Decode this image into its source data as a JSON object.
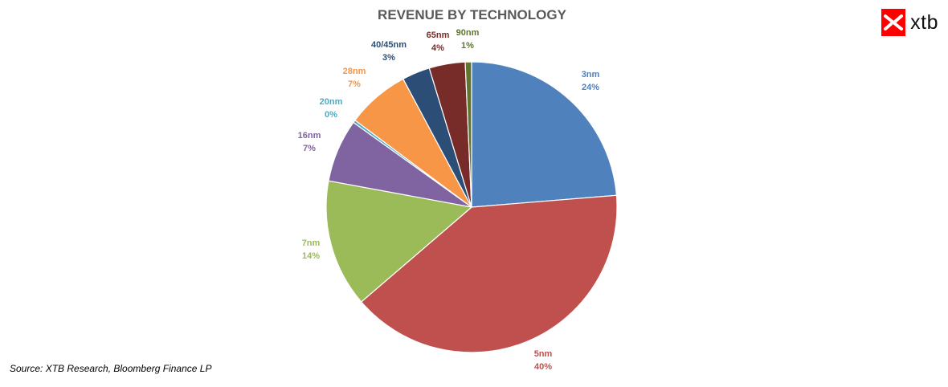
{
  "chart_data": {
    "type": "pie",
    "title": "REVENUE BY TECHNOLOGY",
    "slices": [
      {
        "label": "3nm",
        "percent_label": "24%",
        "value": 23.7,
        "color": "#4f81bd"
      },
      {
        "label": "5nm",
        "percent_label": "40%",
        "value": 40.0,
        "color": "#c0504d"
      },
      {
        "label": "7nm",
        "percent_label": "14%",
        "value": 14.2,
        "color": "#9bbb59"
      },
      {
        "label": "16nm",
        "percent_label": "7%",
        "value": 7.0,
        "color": "#8064a2"
      },
      {
        "label": "20nm",
        "percent_label": "0%",
        "value": 0.3,
        "color": "#4bacc6"
      },
      {
        "label": "28nm",
        "percent_label": "7%",
        "value": 7.0,
        "color": "#f79646"
      },
      {
        "label": "40/45nm",
        "percent_label": "3%",
        "value": 3.1,
        "color": "#2c4d75"
      },
      {
        "label": "65nm",
        "percent_label": "4%",
        "value": 4.0,
        "color": "#772c2a"
      },
      {
        "label": "90nm",
        "percent_label": "1%",
        "value": 0.7,
        "color": "#5f7530"
      }
    ],
    "start_angle_deg": 0,
    "direction": "clockwise"
  },
  "source": "Source: XTB Research, Bloomberg Finance LP",
  "logo": {
    "text": "xtb",
    "brand_color": "#ff0000"
  }
}
